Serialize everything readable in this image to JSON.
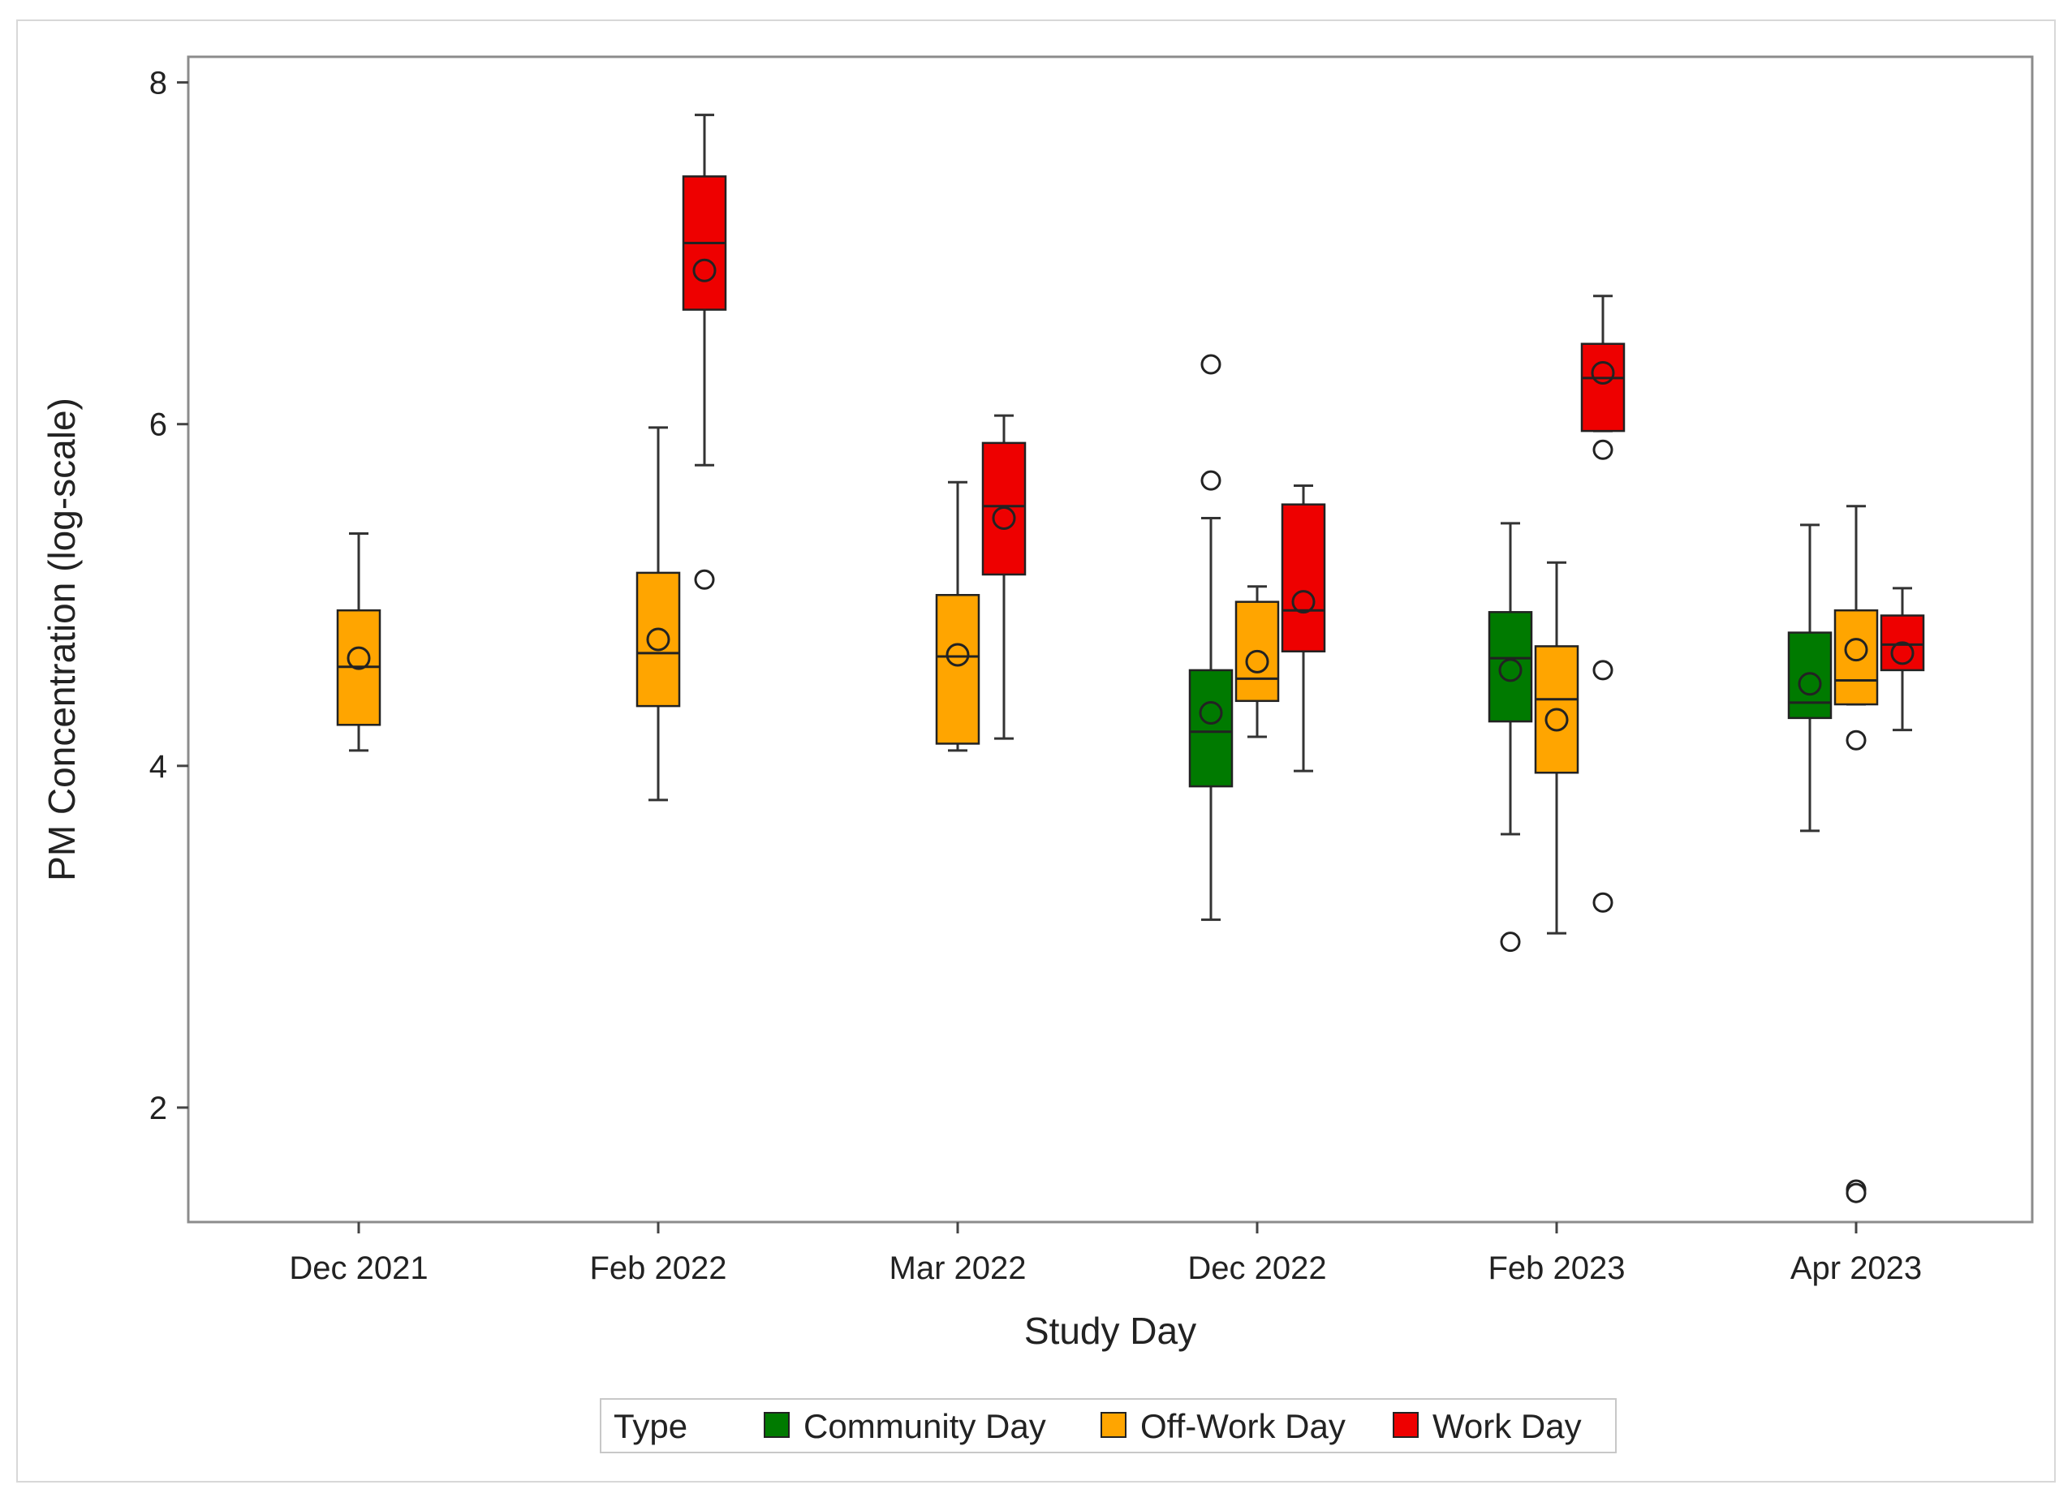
{
  "chart_data": {
    "type": "box",
    "title": "",
    "xlabel": "Study Day",
    "ylabel": "PM Concentration (log-scale)",
    "ylim": [
      1.33,
      8.15
    ],
    "yticks": [
      2,
      4,
      6,
      8
    ],
    "grid": false,
    "legend_position": "bottom",
    "categories": [
      "Dec 2021",
      "Feb 2022",
      "Mar 2022",
      "Dec 2022",
      "Feb 2023",
      "Apr 2023"
    ],
    "legend": {
      "title": "Type",
      "entries": [
        "Community Day",
        "Off-Work Day",
        "Work Day"
      ]
    },
    "series": [
      {
        "name": "Community Day",
        "color": "#007a00",
        "boxes": [
          {
            "category": "Dec 2022",
            "whisker_low": 3.1,
            "q1": 3.88,
            "median": 4.2,
            "q3": 4.56,
            "whisker_high": 5.45,
            "mean": 4.31,
            "outliers": [
              5.67,
              6.35
            ]
          },
          {
            "category": "Feb 2023",
            "whisker_low": 3.6,
            "q1": 4.26,
            "median": 4.63,
            "q3": 4.9,
            "whisker_high": 5.42,
            "mean": 4.56,
            "outliers": [
              2.97
            ]
          },
          {
            "category": "Apr 2023",
            "whisker_low": 3.62,
            "q1": 4.28,
            "median": 4.37,
            "q3": 4.78,
            "whisker_high": 5.41,
            "mean": 4.48,
            "outliers": []
          }
        ]
      },
      {
        "name": "Off-Work Day",
        "color": "#ffa500",
        "boxes": [
          {
            "category": "Dec 2021",
            "whisker_low": 4.09,
            "q1": 4.24,
            "median": 4.58,
            "q3": 4.91,
            "whisker_high": 5.36,
            "mean": 4.63,
            "outliers": []
          },
          {
            "category": "Feb 2022",
            "whisker_low": 3.8,
            "q1": 4.35,
            "median": 4.66,
            "q3": 5.13,
            "whisker_high": 5.98,
            "mean": 4.74,
            "outliers": []
          },
          {
            "category": "Mar 2022",
            "whisker_low": 4.09,
            "q1": 4.13,
            "median": 4.64,
            "q3": 5.0,
            "whisker_high": 5.66,
            "mean": 4.65,
            "outliers": []
          },
          {
            "category": "Dec 2022",
            "whisker_low": 4.17,
            "q1": 4.38,
            "median": 4.51,
            "q3": 4.96,
            "whisker_high": 5.05,
            "mean": 4.61,
            "outliers": []
          },
          {
            "category": "Feb 2023",
            "whisker_low": 3.02,
            "q1": 3.96,
            "median": 4.39,
            "q3": 4.7,
            "whisker_high": 5.19,
            "mean": 4.27,
            "outliers": []
          },
          {
            "category": "Apr 2023",
            "whisker_low": 4.36,
            "q1": 4.36,
            "median": 4.5,
            "q3": 4.91,
            "whisker_high": 5.52,
            "mean": 4.68,
            "outliers": [
              4.15,
              1.52,
              1.5
            ]
          }
        ]
      },
      {
        "name": "Work Day",
        "color": "#ee0000",
        "boxes": [
          {
            "category": "Feb 2022",
            "whisker_low": 5.76,
            "q1": 6.67,
            "median": 7.06,
            "q3": 7.45,
            "whisker_high": 7.81,
            "mean": 6.9,
            "outliers": [
              5.09
            ]
          },
          {
            "category": "Mar 2022",
            "whisker_low": 4.16,
            "q1": 5.12,
            "median": 5.52,
            "q3": 5.89,
            "whisker_high": 6.05,
            "mean": 5.45,
            "outliers": []
          },
          {
            "category": "Dec 2022",
            "whisker_low": 3.97,
            "q1": 4.67,
            "median": 4.91,
            "q3": 5.53,
            "whisker_high": 5.64,
            "mean": 4.96,
            "outliers": []
          },
          {
            "category": "Feb 2023",
            "whisker_low": 5.96,
            "q1": 5.96,
            "median": 6.27,
            "q3": 6.47,
            "whisker_high": 6.75,
            "mean": 6.3,
            "outliers": [
              5.85,
              4.56,
              3.2
            ]
          },
          {
            "category": "Apr 2023",
            "whisker_low": 4.21,
            "q1": 4.56,
            "median": 4.71,
            "q3": 4.88,
            "whisker_high": 5.04,
            "mean": 4.66,
            "outliers": []
          }
        ]
      }
    ]
  }
}
